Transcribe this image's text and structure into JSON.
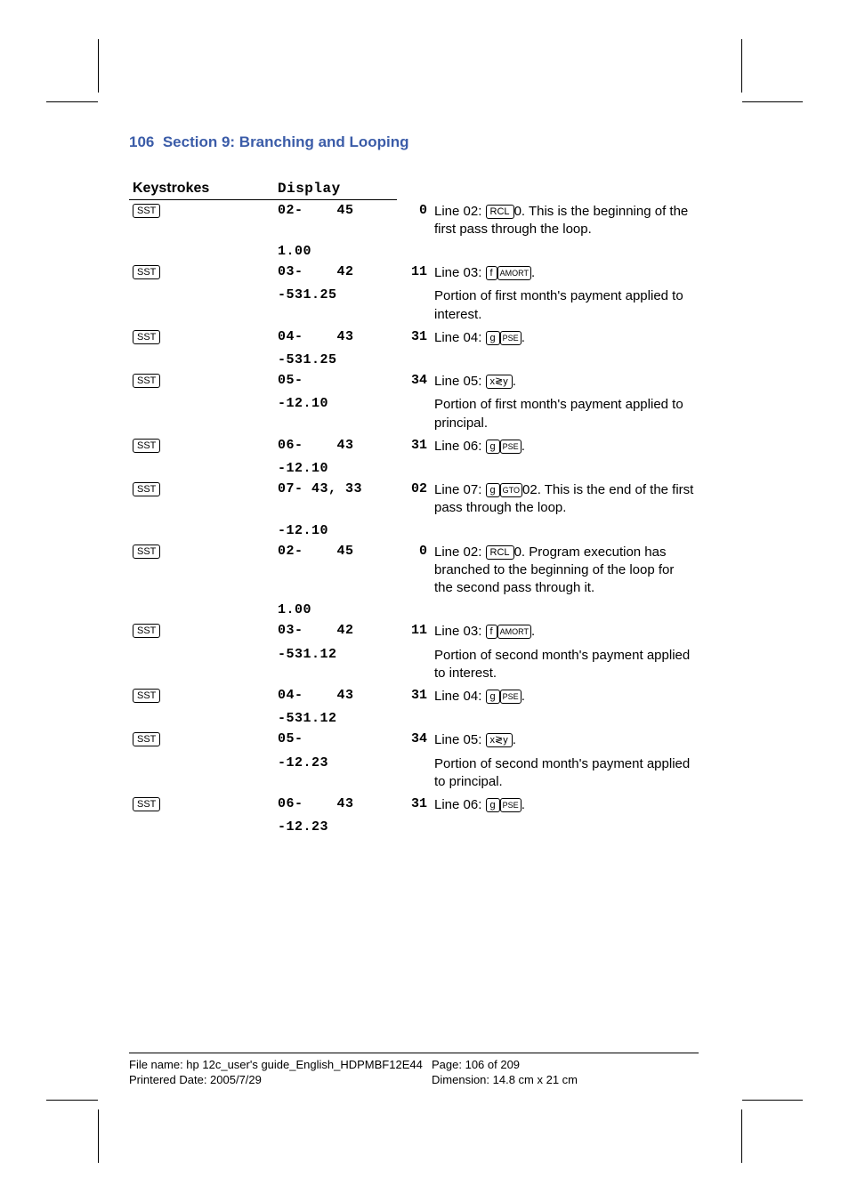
{
  "header": {
    "page_number": "106",
    "section_title": "Section 9: Branching and Looping"
  },
  "table": {
    "headers": {
      "keystrokes": "Keystrokes",
      "display": "Display"
    },
    "rows": [
      {
        "key": "SST",
        "disp": "02-    45",
        "step": "0",
        "desc_pre": "Line 02: ",
        "k1": "RCL",
        "desc_post": "0. This is the beginning of the first pass through the loop."
      },
      {
        "key": "",
        "disp": "1.00",
        "step": "",
        "desc_pre": "",
        "desc_post": ""
      },
      {
        "key": "SST",
        "disp": "03-    42",
        "step": "11",
        "desc_pre": "Line 03: ",
        "k1": "f",
        "k2": "AMORT",
        "desc_post": "."
      },
      {
        "key": "",
        "disp": "-531.25",
        "step": "",
        "desc_pre": "Portion of first month's payment applied to interest.",
        "desc_post": ""
      },
      {
        "key": "SST",
        "disp": "04-    43",
        "step": "31",
        "desc_pre": "Line 04: ",
        "k1": "g",
        "k2": "PSE",
        "desc_post": "."
      },
      {
        "key": "",
        "disp": "-531.25",
        "step": "",
        "desc_pre": "",
        "desc_post": ""
      },
      {
        "key": "SST",
        "disp": "05-",
        "step": "34",
        "desc_pre": "Line 05: ",
        "k1": "x≷y",
        "desc_post": "."
      },
      {
        "key": "",
        "disp": "-12.10",
        "step": "",
        "desc_pre": "Portion of first month's payment applied to principal.",
        "desc_post": ""
      },
      {
        "key": "SST",
        "disp": "06-    43",
        "step": "31",
        "desc_pre": "Line 06: ",
        "k1": "g",
        "k2": "PSE",
        "desc_post": "."
      },
      {
        "key": "",
        "disp": "-12.10",
        "step": "",
        "desc_pre": "",
        "desc_post": ""
      },
      {
        "key": "SST",
        "disp": "07- 43, 33",
        "step": "02",
        "desc_pre": "Line 07: ",
        "k1": "g",
        "k2": "GTO",
        "desc_post": "02. This is the end of the first pass through the loop."
      },
      {
        "key": "",
        "disp": "-12.10",
        "step": "",
        "desc_pre": "",
        "desc_post": ""
      },
      {
        "key": "SST",
        "disp": "02-    45",
        "step": "0",
        "desc_pre": "Line 02: ",
        "k1": "RCL",
        "desc_post": "0. Program execution has branched to the beginning of the loop for the second pass through it."
      },
      {
        "key": "",
        "disp": "1.00",
        "step": "",
        "desc_pre": "",
        "desc_post": ""
      },
      {
        "key": "SST",
        "disp": "03-    42",
        "step": "11",
        "desc_pre": "Line 03: ",
        "k1": "f",
        "k2": "AMORT",
        "desc_post": "."
      },
      {
        "key": "",
        "disp": "-531.12",
        "step": "",
        "desc_pre": "Portion of second month's payment applied to interest.",
        "desc_post": ""
      },
      {
        "key": "SST",
        "disp": "04-    43",
        "step": "31",
        "desc_pre": "Line 04: ",
        "k1": "g",
        "k2": "PSE",
        "desc_post": "."
      },
      {
        "key": "",
        "disp": "-531.12",
        "step": "",
        "desc_pre": "",
        "desc_post": ""
      },
      {
        "key": "SST",
        "disp": "05-",
        "step": "34",
        "desc_pre": "Line 05: ",
        "k1": "x≷y",
        "desc_post": "."
      },
      {
        "key": "",
        "disp": "-12.23",
        "step": "",
        "desc_pre": "Portion of second month's payment applied to principal.",
        "desc_post": ""
      },
      {
        "key": "SST",
        "disp": "06-    43",
        "step": "31",
        "desc_pre": "Line 06: ",
        "k1": "g",
        "k2": "PSE",
        "desc_post": "."
      },
      {
        "key": "",
        "disp": "-12.23",
        "step": "",
        "desc_pre": "",
        "desc_post": ""
      }
    ]
  },
  "footer": {
    "file_name": "File name: hp 12c_user's guide_English_HDPMBF12E44",
    "print_date": "Printered Date: 2005/7/29",
    "page_info": "Page: 106 of 209",
    "dimension": "Dimension: 14.8 cm x 21 cm"
  }
}
